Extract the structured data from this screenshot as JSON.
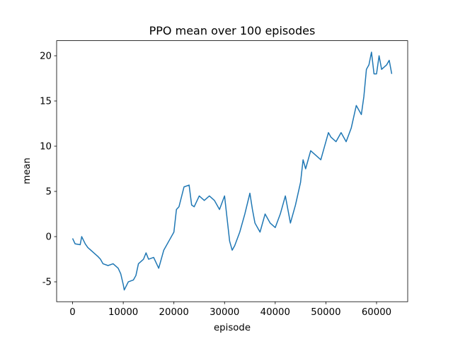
{
  "chart_data": {
    "type": "line",
    "title": "PPO mean over 100 episodes",
    "x_label": "episode",
    "y_label": "mean",
    "x": [
      0,
      500,
      1500,
      1800,
      2500,
      3000,
      4000,
      5000,
      5500,
      6000,
      7000,
      8000,
      9000,
      9500,
      10000,
      10200,
      11000,
      12000,
      12500,
      13000,
      14000,
      14500,
      15000,
      16000,
      17000,
      17500,
      18000,
      19000,
      20000,
      20500,
      21000,
      22000,
      23000,
      23500,
      24000,
      25000,
      26000,
      27000,
      28000,
      29000,
      30000,
      30500,
      31000,
      31500,
      32000,
      33000,
      34000,
      35000,
      35500,
      36000,
      37000,
      38000,
      39000,
      40000,
      41000,
      42000,
      42500,
      43000,
      44000,
      45000,
      45500,
      46000,
      47000,
      48000,
      49000,
      50000,
      50500,
      51000,
      52000,
      53000,
      54000,
      55000,
      56000,
      57000,
      57500,
      58000,
      58500,
      59000,
      59500,
      60000,
      60500,
      61000,
      62000,
      62500,
      63000
    ],
    "series": [
      {
        "name": "mean",
        "color": "#1f77b4",
        "values": [
          -0.2,
          -0.8,
          -0.9,
          0,
          -0.8,
          -1.2,
          -1.7,
          -2.2,
          -2.5,
          -3.0,
          -3.2,
          -3.0,
          -3.5,
          -4.1,
          -5.3,
          -5.9,
          -5.0,
          -4.8,
          -4.3,
          -3.0,
          -2.5,
          -1.8,
          -2.5,
          -2.3,
          -3.5,
          -2.5,
          -1.5,
          -0.5,
          0.5,
          3.0,
          3.3,
          5.5,
          5.7,
          3.5,
          3.3,
          4.5,
          4.0,
          4.5,
          4.0,
          3.0,
          4.5,
          2.0,
          -0.5,
          -1.5,
          -1.0,
          0.5,
          2.5,
          4.8,
          3.0,
          1.5,
          0.5,
          2.5,
          1.5,
          1.0,
          2.5,
          4.5,
          3.0,
          1.5,
          3.5,
          6.0,
          8.5,
          7.5,
          9.5,
          9.0,
          8.5,
          10.5,
          11.5,
          11.0,
          10.5,
          11.5,
          10.5,
          12.0,
          14.5,
          13.5,
          15.5,
          18.5,
          19.0,
          20.4,
          18.0,
          18.0,
          20.0,
          18.5,
          19.0,
          19.5,
          18.0
        ]
      }
    ],
    "xlim": [
      -3150,
      66150
    ],
    "ylim": [
      -7.2,
      21.67
    ],
    "xticks": [
      0,
      10000,
      20000,
      30000,
      40000,
      50000,
      60000
    ],
    "yticks": [
      -5,
      0,
      5,
      10,
      15,
      20
    ]
  }
}
